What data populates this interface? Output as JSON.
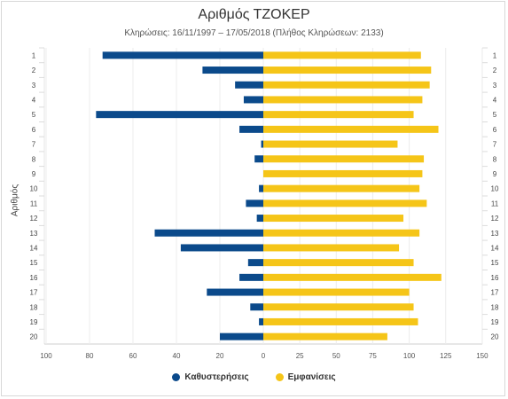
{
  "chart_data": {
    "type": "bar",
    "title": "Αριθμός ΤΖΟΚΕΡ",
    "subtitle": "Κληρώσεις: 16/11/1997 – 17/05/2018 (Πλήθος Κληρώσεων: 2133)",
    "ylabel": "Αριθμός",
    "categories": [
      "1",
      "2",
      "3",
      "4",
      "5",
      "6",
      "7",
      "8",
      "9",
      "10",
      "11",
      "12",
      "13",
      "14",
      "15",
      "16",
      "17",
      "18",
      "19",
      "20"
    ],
    "left_axis_ticks": [
      "100",
      "80",
      "60",
      "40",
      "20",
      "0"
    ],
    "right_axis_ticks": [
      "25",
      "50",
      "75",
      "100",
      "125",
      "150"
    ],
    "series": [
      {
        "name": "Καθυστερήσεις",
        "color": "#0b4a8b",
        "values": [
          74,
          28,
          13,
          9,
          77,
          11,
          1,
          4,
          0,
          2,
          8,
          3,
          50,
          38,
          7,
          11,
          26,
          6,
          2,
          20
        ]
      },
      {
        "name": "Εμφανίσεις",
        "color": "#f5c518",
        "values": [
          108,
          115,
          114,
          109,
          103,
          120,
          92,
          110,
          109,
          107,
          112,
          96,
          107,
          93,
          103,
          122,
          100,
          103,
          106,
          85
        ]
      }
    ],
    "left_scale_max": 100,
    "right_scale_max": 150,
    "grid": true,
    "legend_position": "bottom-center"
  }
}
